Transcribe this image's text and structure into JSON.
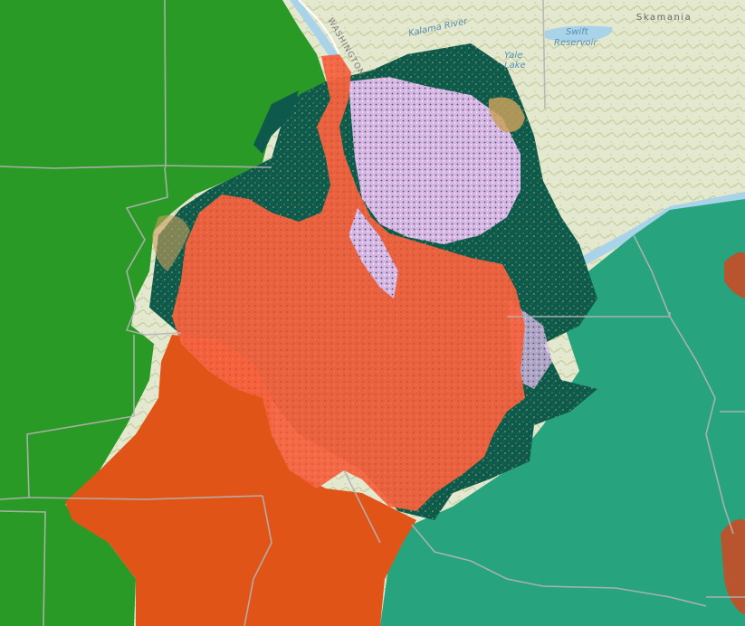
{
  "map": {
    "labels": {
      "kalama_river": "Kalama River",
      "swift_reservoir_line1": "Swift",
      "swift_reservoir_line2": "Reservoir",
      "yale_lake_line1": "Yale",
      "yale_lake_line2": "Lake",
      "skamania": "Skamania",
      "washington": "WASHINGTON"
    },
    "colors": {
      "basemap_land": "#e6ead3",
      "basemap_hills": "#c9d3a6",
      "water": "#a8d3e8",
      "green_region": "#2a9a26",
      "teal_region": "#27a37e",
      "forest_dark": "#0d5a4c",
      "urban_pink": "#e3b3ec",
      "tan_patches": "#c9a05c",
      "red_overlay": "#ff6040",
      "orange_overlay": "#e05418",
      "boundary": "#b0b0b0"
    }
  }
}
